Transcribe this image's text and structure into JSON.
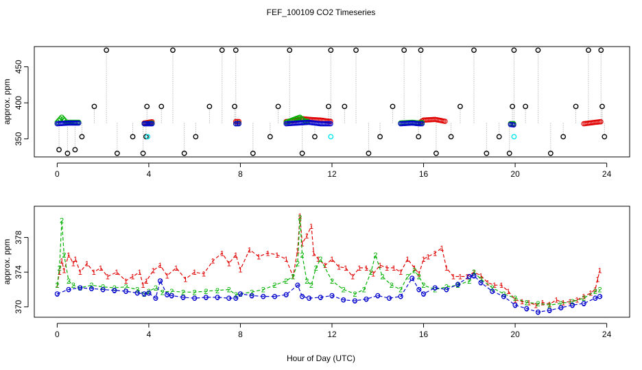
{
  "figure": {
    "title": "FEF_100109  CO2 Timeseries",
    "xlabel": "Hour of Day (UTC)"
  },
  "chart_data": [
    {
      "type": "scatter",
      "panel": "top",
      "ylabel": "approx. ppm",
      "xlim": [
        -1,
        25
      ],
      "ylim": [
        325,
        478
      ],
      "x_ticks": [
        0,
        4,
        8,
        12,
        16,
        20,
        24
      ],
      "x_tick_labels": [
        "0",
        "4",
        "8",
        "12",
        "16",
        "20",
        "24"
      ],
      "y_ticks": [
        350,
        400,
        450
      ],
      "y_tick_labels": [
        "350",
        "400",
        "450"
      ],
      "series": [
        {
          "name": "black cycle outliers",
          "color": "#000000",
          "marker": "circle",
          "x": [
            0.08,
            0.45,
            0.78,
            1.08,
            1.62,
            2.15,
            2.62,
            3.3,
            3.75,
            3.88,
            3.92,
            4.55,
            5.05,
            5.55,
            6.05,
            6.65,
            7.2,
            7.75,
            7.8,
            8.55,
            9.3,
            9.65,
            10.15,
            10.7,
            11.25,
            11.85,
            11.95,
            12.55,
            13.05,
            13.6,
            14.1,
            14.65,
            15.15,
            15.78,
            15.88,
            16.55,
            17.2,
            17.6,
            18.2,
            18.75,
            19.3,
            19.75,
            19.88,
            19.95,
            20.45,
            21.0,
            21.55,
            22.1,
            22.65,
            23.2,
            23.75,
            23.8,
            23.9
          ],
          "y": [
            335,
            330,
            335,
            353,
            395,
            473,
            330,
            353,
            330,
            353,
            395,
            395,
            473,
            330,
            353,
            395,
            473,
            395,
            473,
            330,
            353,
            395,
            473,
            330,
            353,
            395,
            473,
            395,
            473,
            330,
            353,
            395,
            473,
            353,
            473,
            330,
            353,
            395,
            473,
            330,
            353,
            330,
            395,
            473,
            395,
            473,
            330,
            353,
            395,
            473,
            473,
            395,
            353
          ]
        },
        {
          "name": "cyan markers",
          "color": "#00e5ee",
          "marker": "circle",
          "x": [
            3.95,
            11.95,
            19.95
          ],
          "y": [
            353,
            353,
            353
          ]
        },
        {
          "name": "red",
          "color": "#e00000",
          "marker": "circle",
          "x": [
            0,
            1,
            2,
            3,
            3.8,
            4.2,
            5,
            6,
            7,
            7.8,
            8,
            9,
            10,
            10.5,
            10.7,
            11,
            11.5,
            12,
            13,
            14,
            15,
            15.8,
            16,
            16.5,
            17,
            18,
            19,
            19.8,
            20,
            21,
            22,
            23,
            23.5,
            23.8
          ],
          "y": [
            372,
            374,
            373,
            373,
            372,
            374,
            373,
            372,
            374,
            374,
            374,
            375,
            374,
            376,
            378,
            377,
            376,
            374,
            374,
            376,
            373,
            372,
            376,
            377,
            374,
            373,
            372,
            371,
            370,
            370,
            370,
            371,
            373,
            374
          ]
        },
        {
          "name": "green",
          "color": "#00b000",
          "marker": "circle",
          "x": [
            0,
            0.2,
            0.4,
            1,
            2,
            3,
            3.8,
            4.2,
            5,
            6,
            7,
            7.8,
            8,
            9,
            10,
            10.6,
            10.8,
            11,
            12,
            13,
            14,
            15,
            15.5,
            15.8,
            16,
            17,
            18,
            19,
            19.8,
            20,
            21,
            22,
            23,
            23.8
          ],
          "y": [
            373,
            380,
            373,
            373,
            372,
            372,
            371,
            372,
            372,
            372,
            372,
            371,
            372,
            372,
            373,
            380,
            375,
            374,
            372,
            372,
            374,
            372,
            373,
            372,
            373,
            373,
            373,
            372,
            371,
            371,
            370,
            370,
            371,
            372
          ]
        },
        {
          "name": "blue",
          "color": "#0000cc",
          "marker": "circle",
          "x": [
            0,
            0.5,
            1,
            2,
            3,
            3.8,
            4.2,
            5,
            6,
            7,
            7.8,
            8,
            9,
            10,
            10.5,
            11,
            11.5,
            12,
            13,
            14,
            15,
            15.5,
            15.8,
            16,
            17,
            18,
            19,
            19.8,
            20,
            21,
            22,
            23,
            23.8
          ],
          "y": [
            371,
            372,
            372,
            372,
            371,
            371,
            371,
            371,
            371,
            371,
            371,
            371,
            371,
            371,
            372,
            373,
            371,
            371,
            371,
            372,
            371,
            372,
            371,
            371,
            372,
            373,
            371,
            370,
            369,
            369,
            369,
            370,
            371
          ]
        }
      ]
    },
    {
      "type": "line",
      "panel": "bottom",
      "ylabel": "approx. ppm",
      "xlim": [
        -1,
        25
      ],
      "ylim": [
        368.8,
        381.6
      ],
      "x_ticks": [
        0,
        4,
        8,
        12,
        16,
        20,
        24
      ],
      "x_tick_labels": [
        "0",
        "4",
        "8",
        "12",
        "16",
        "20",
        "24"
      ],
      "y_ticks": [
        370,
        374,
        378
      ],
      "y_tick_labels": [
        "370",
        "374",
        "378"
      ],
      "series": [
        {
          "name": "1",
          "color": "#e00000",
          "marker": "1",
          "x": [
            0,
            0.1,
            0.2,
            0.3,
            0.5,
            0.7,
            0.8,
            1.0,
            1.3,
            1.6,
            1.9,
            2.2,
            2.6,
            3.0,
            3.3,
            3.6,
            3.75,
            3.9,
            4.2,
            4.5,
            4.8,
            5.2,
            5.6,
            6.0,
            6.4,
            6.8,
            7.2,
            7.5,
            7.8,
            8.0,
            8.4,
            8.8,
            9.2,
            9.6,
            10.0,
            10.3,
            10.5,
            10.6,
            10.7,
            10.9,
            11.1,
            11.2,
            11.4,
            11.7,
            12.0,
            12.3,
            12.6,
            12.9,
            13.2,
            13.5,
            13.8,
            14.1,
            14.4,
            14.7,
            15.0,
            15.3,
            15.6,
            15.8,
            16.0,
            16.2,
            16.5,
            16.8,
            17.0,
            17.3,
            17.6,
            17.9,
            18.2,
            18.5,
            18.8,
            19.1,
            19.4,
            19.7,
            20.0,
            20.3,
            20.6,
            20.9,
            21.2,
            21.5,
            21.8,
            22.1,
            22.4,
            22.7,
            23.0,
            23.3,
            23.5,
            23.6,
            23.7
          ],
          "y": [
            372.5,
            374,
            375.3,
            374.2,
            376,
            375,
            375.5,
            374,
            375,
            374,
            374.5,
            373.5,
            374,
            373,
            373.5,
            374,
            372.5,
            373,
            374.2,
            374.8,
            373.6,
            374.5,
            373.2,
            374,
            373.8,
            375.3,
            376.2,
            375,
            376,
            374.3,
            376.6,
            375.8,
            376.2,
            376,
            375.5,
            373.5,
            376.5,
            380.5,
            377.3,
            378.2,
            379.3,
            376.2,
            375.5,
            374.8,
            375.5,
            374.6,
            374.5,
            373.5,
            374.5,
            374.5,
            373.8,
            374.8,
            374.5,
            374.5,
            374,
            375.5,
            374.5,
            373.8,
            375.5,
            375.8,
            376.2,
            376.8,
            374.5,
            373.5,
            373.5,
            373.5,
            374,
            373.6,
            372.8,
            372.5,
            372.5,
            371.8,
            370.8,
            370.6,
            370.5,
            370.2,
            370.5,
            370.3,
            370.8,
            370.5,
            370.6,
            370.8,
            371.2,
            371.6,
            372,
            373.2,
            374.2
          ]
        },
        {
          "name": "2",
          "color": "#00b000",
          "marker": "2",
          "x": [
            0,
            0.1,
            0.2,
            0.3,
            0.5,
            0.7,
            1.0,
            1.5,
            2.0,
            2.5,
            3.0,
            3.5,
            3.8,
            4.0,
            4.3,
            4.6,
            5.0,
            5.5,
            6.0,
            6.5,
            7.0,
            7.5,
            7.8,
            8.0,
            8.5,
            9.0,
            9.5,
            10.0,
            10.3,
            10.5,
            10.6,
            10.7,
            10.9,
            11.1,
            11.3,
            11.5,
            12.0,
            12.5,
            13.0,
            13.4,
            13.7,
            13.9,
            14.2,
            14.6,
            15.0,
            15.3,
            15.6,
            15.8,
            16.0,
            16.5,
            17.0,
            17.5,
            18.0,
            18.2,
            18.5,
            19.0,
            19.5,
            20.0,
            20.5,
            21.0,
            21.5,
            22.0,
            22.5,
            23.0,
            23.5,
            23.7
          ],
          "y": [
            372.5,
            374.5,
            380,
            376,
            373,
            372.5,
            372.2,
            372.5,
            372.3,
            372.2,
            372.3,
            372,
            371.5,
            371.8,
            372.2,
            371.7,
            371.8,
            371.7,
            371.7,
            371.8,
            371.9,
            372,
            371.4,
            371.5,
            371.7,
            372,
            372.5,
            373,
            373.5,
            375,
            380.3,
            376,
            373,
            372.5,
            374.5,
            375.5,
            373,
            372,
            371.5,
            372,
            374,
            376,
            373.5,
            372.5,
            372,
            373.5,
            374.2,
            373.5,
            372.5,
            372,
            372.3,
            372.5,
            373,
            374,
            373.2,
            372.2,
            371.5,
            371,
            370.5,
            370.4,
            370.2,
            370.4,
            370.6,
            371,
            371.8,
            372
          ]
        },
        {
          "name": "3",
          "color": "#0000cc",
          "marker": "3",
          "x": [
            0,
            0.5,
            1,
            1.5,
            2,
            2.5,
            3,
            3.5,
            3.8,
            4.0,
            4.3,
            4.5,
            4.8,
            5.0,
            5.5,
            6.0,
            6.5,
            7.0,
            7.5,
            7.8,
            8.0,
            8.5,
            9.0,
            9.5,
            10.0,
            10.5,
            10.7,
            11.0,
            11.5,
            12.0,
            12.5,
            13.0,
            13.5,
            14.0,
            14.5,
            15.0,
            15.5,
            15.8,
            16.0,
            16.5,
            17.0,
            17.5,
            18.0,
            18.2,
            18.5,
            19.0,
            19.5,
            20.0,
            20.5,
            21.0,
            21.5,
            22.0,
            22.5,
            23.0,
            23.5,
            23.7
          ],
          "y": [
            371.5,
            372,
            372.2,
            372.1,
            372,
            371.9,
            371.8,
            371.6,
            371.5,
            371.6,
            371,
            373,
            371.4,
            371.3,
            371.1,
            371,
            371.1,
            371.1,
            371,
            371,
            371.5,
            371.3,
            371.2,
            371.2,
            371.4,
            372.5,
            371.2,
            371,
            371.1,
            371.3,
            370.8,
            370.7,
            370.9,
            371.3,
            371,
            371.2,
            373.3,
            372,
            371.5,
            372.2,
            372,
            372.6,
            373.5,
            373.6,
            372.8,
            371.8,
            371.2,
            370.2,
            369.8,
            369.4,
            369.6,
            369.9,
            370.2,
            370.4,
            371,
            371.2
          ]
        }
      ]
    }
  ]
}
